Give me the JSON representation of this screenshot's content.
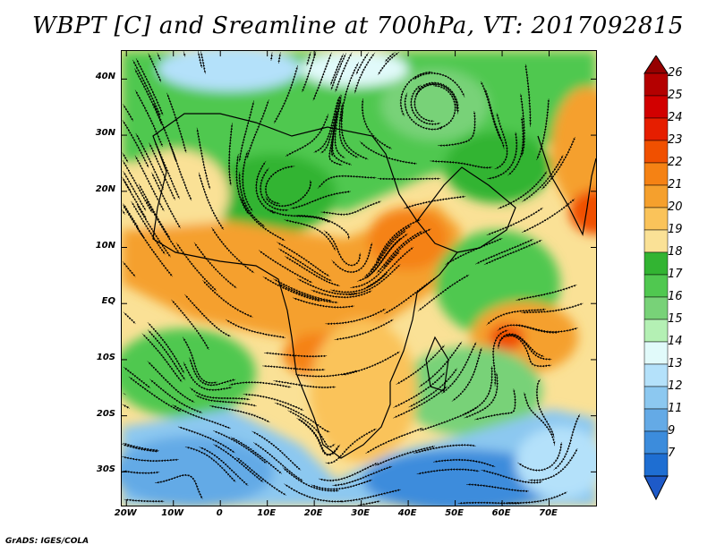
{
  "title": "WBPT [C] and Sreamline at 700hPa, VT: 2017092815",
  "credit": "GrADS: IGES/COLA",
  "map": {
    "lat_ticks": [
      "40N",
      "30N",
      "20N",
      "10N",
      "EQ",
      "10S",
      "20S",
      "30S"
    ],
    "lat_values": [
      40,
      30,
      20,
      10,
      0,
      -10,
      -20,
      -30
    ],
    "lon_ticks": [
      "20W",
      "10W",
      "0",
      "10E",
      "20E",
      "30E",
      "40E",
      "50E",
      "60E",
      "70E"
    ],
    "lon_values": [
      -20,
      -10,
      0,
      10,
      20,
      30,
      40,
      50,
      60,
      70
    ],
    "lon_range": [
      -21,
      80
    ],
    "lat_range": [
      -36,
      45
    ]
  },
  "colorbar": {
    "labels": [
      "26",
      "25",
      "24",
      "23",
      "22",
      "21",
      "20",
      "19",
      "18",
      "17",
      "16",
      "15",
      "14",
      "13",
      "12",
      "11",
      "9",
      "7"
    ],
    "colors": [
      "#b40000",
      "#d20000",
      "#e61e00",
      "#f05000",
      "#f58214",
      "#f5a02d",
      "#fac35a",
      "#fae196",
      "#32b432",
      "#50c850",
      "#78d278",
      "#b4f0b4",
      "#e1fafa",
      "#b4e1fa",
      "#8cc8f0",
      "#64aae6",
      "#3c8cdc",
      "#1e6ed2"
    ],
    "top_arrow_color": "#960000",
    "bottom_arrow_color": "#1e5ac8"
  }
}
